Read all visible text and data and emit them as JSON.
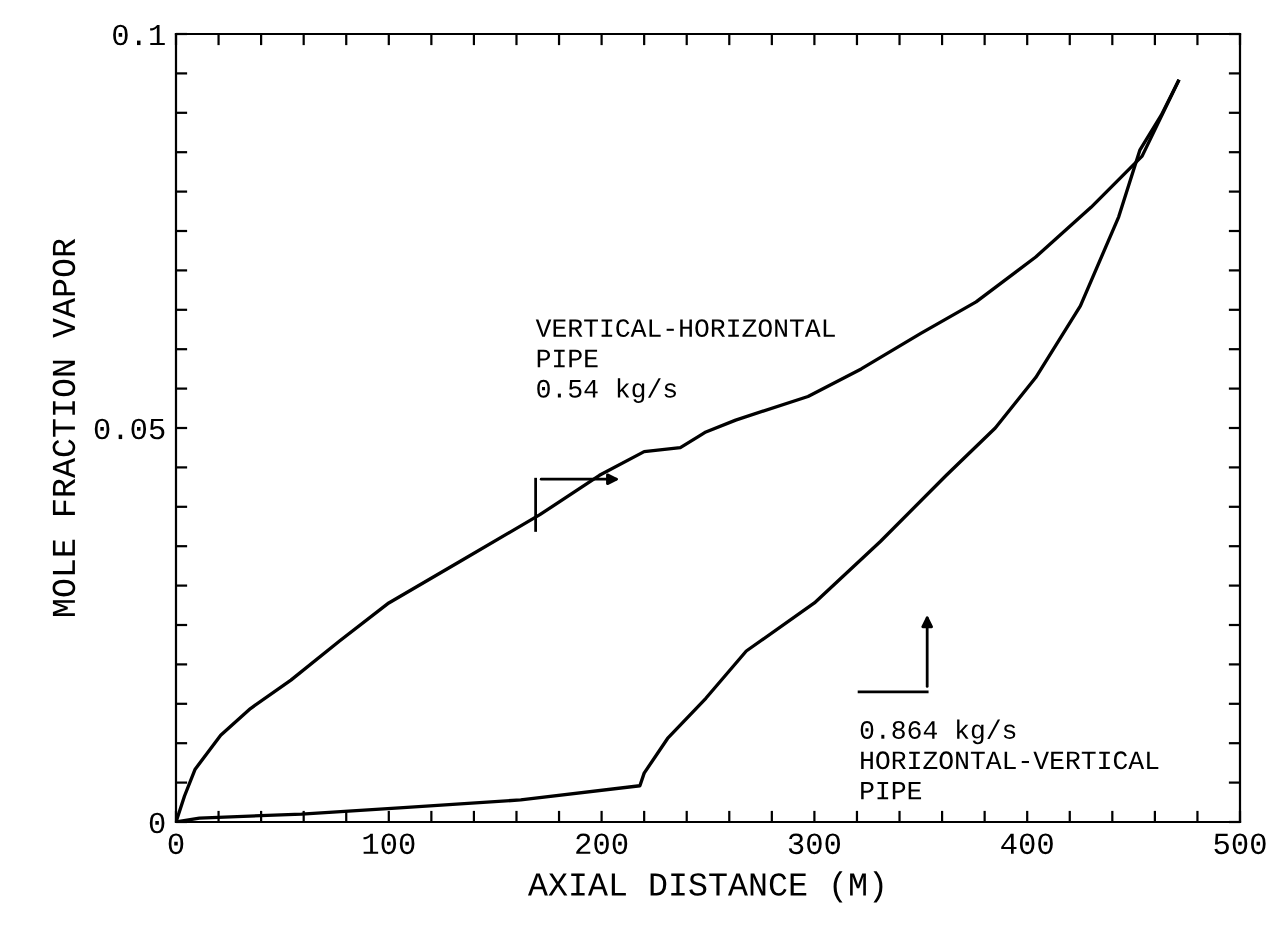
{
  "chart_data": {
    "type": "line",
    "xlabel": "AXIAL DISTANCE (M)",
    "ylabel": "MOLE FRACTION VAPOR",
    "xlim": [
      0,
      500
    ],
    "ylim": [
      0,
      0.1
    ],
    "xticks": [
      0,
      {
        "value": 20,
        "label": null
      },
      {
        "value": 40,
        "label": null
      },
      {
        "value": 60,
        "label": null
      },
      {
        "value": 80,
        "label": null
      },
      100,
      {
        "value": 120,
        "label": null
      },
      {
        "value": 140,
        "label": null
      },
      {
        "value": 160,
        "label": null
      },
      {
        "value": 180,
        "label": null
      },
      200,
      {
        "value": 220,
        "label": null
      },
      {
        "value": 240,
        "label": null
      },
      {
        "value": 260,
        "label": null
      },
      {
        "value": 280,
        "label": null
      },
      300,
      {
        "value": 320,
        "label": null
      },
      {
        "value": 340,
        "label": null
      },
      {
        "value": 360,
        "label": null
      },
      {
        "value": 380,
        "label": null
      },
      400,
      {
        "value": 420,
        "label": null
      },
      {
        "value": 440,
        "label": null
      },
      {
        "value": 460,
        "label": null
      },
      {
        "value": 480,
        "label": null
      },
      500
    ],
    "yticks": [
      0,
      {
        "value": 0.005,
        "label": null
      },
      {
        "value": 0.01,
        "label": null
      },
      {
        "value": 0.015,
        "label": null
      },
      {
        "value": 0.02,
        "label": null
      },
      {
        "value": 0.025,
        "label": null
      },
      {
        "value": 0.03,
        "label": null
      },
      {
        "value": 0.035,
        "label": null
      },
      {
        "value": 0.04,
        "label": null
      },
      {
        "value": 0.045,
        "label": null
      },
      0.05,
      {
        "value": 0.055,
        "label": null
      },
      {
        "value": 0.06,
        "label": null
      },
      {
        "value": 0.065,
        "label": null
      },
      {
        "value": 0.07,
        "label": null
      },
      {
        "value": 0.075,
        "label": null
      },
      {
        "value": 0.08,
        "label": null
      },
      {
        "value": 0.085,
        "label": null
      },
      {
        "value": 0.09,
        "label": null
      },
      {
        "value": 0.095,
        "label": null
      },
      0.1
    ],
    "grid": false,
    "marker": "none",
    "line_style": "solid",
    "series": [
      {
        "color": "#000000",
        "x": [
          0,
          4,
          9,
          21,
          35,
          54,
          77,
          100,
          133,
          171,
          199,
          220,
          237,
          246,
          249,
          263,
          297,
          322,
          350,
          376,
          404,
          430,
          454,
          471
        ],
        "values": [
          0,
          0.0033,
          0.0067,
          0.011,
          0.0144,
          0.018,
          0.023,
          0.0278,
          0.033,
          0.039,
          0.044,
          0.047,
          0.0475,
          0.049,
          0.0495,
          0.051,
          0.054,
          0.0575,
          0.062,
          0.066,
          0.0717,
          0.078,
          0.0845,
          0.094
        ]
      },
      {
        "color": "#000000",
        "x": [
          0,
          11,
          59,
          105,
          162,
          218,
          220,
          231,
          249,
          268,
          300,
          331,
          362,
          385,
          404,
          425,
          443,
          453,
          463,
          471
        ],
        "values": [
          0,
          0.0005,
          0.001,
          0.0018,
          0.0028,
          0.0046,
          0.0062,
          0.0106,
          0.0157,
          0.0217,
          0.0278,
          0.0356,
          0.044,
          0.05,
          0.0564,
          0.0655,
          0.0768,
          0.0853,
          0.0897,
          0.094
        ]
      }
    ],
    "annotations": [
      "VERTICAL-HORIZONTAL\nPIPE\n0.54 kg/s",
      "0.864 kg/s\nHORIZONTAL-VERTICAL\nPIPE"
    ]
  }
}
